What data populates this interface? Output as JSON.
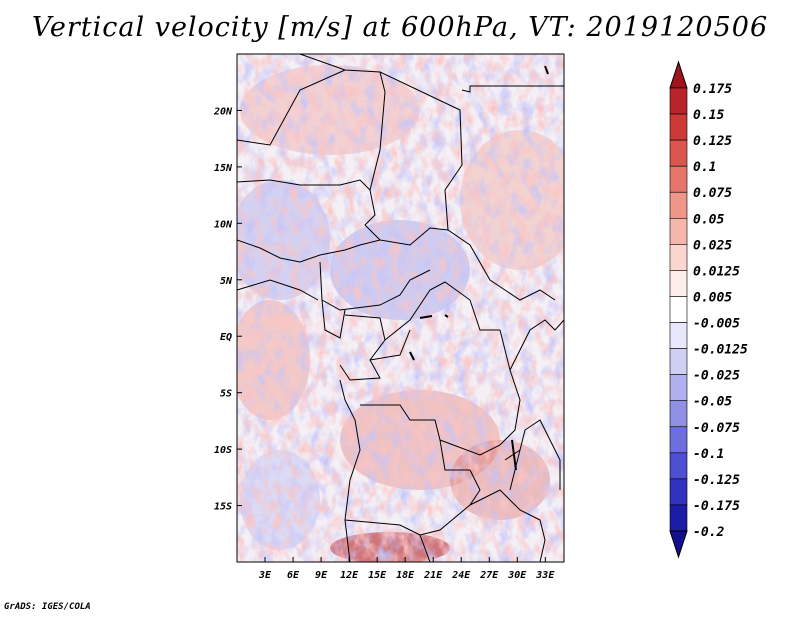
{
  "title": "Vertical velocity [m/s] at 600hPa, VT: 2019120506",
  "credit": "GrADS: IGES/COLA",
  "chart_data": {
    "type": "heatmap",
    "title": "Vertical velocity [m/s] at 600hPa, VT: 2019120506",
    "variable": "Vertical velocity",
    "units": "m/s",
    "level": "600hPa",
    "valid_time": "2019120506",
    "x_axis": {
      "range": [
        0,
        35
      ],
      "ticks": [
        3,
        6,
        9,
        12,
        15,
        18,
        21,
        24,
        27,
        30,
        33
      ],
      "tick_labels": [
        "3E",
        "6E",
        "9E",
        "12E",
        "15E",
        "18E",
        "21E",
        "24E",
        "27E",
        "30E",
        "33E"
      ]
    },
    "y_axis": {
      "range": [
        -20,
        25
      ],
      "ticks": [
        20,
        15,
        10,
        5,
        0,
        -5,
        -10,
        -15
      ],
      "tick_labels": [
        "20N",
        "15N",
        "10N",
        "5N",
        "EQ",
        "5S",
        "10S",
        "15S"
      ]
    },
    "colorbar": {
      "labels": [
        "0.175",
        "0.15",
        "0.125",
        "0.1",
        "0.075",
        "0.05",
        "0.025",
        "0.0125",
        "0.005",
        "-0.005",
        "-0.0125",
        "-0.025",
        "-0.05",
        "-0.075",
        "-0.1",
        "-0.125",
        "-0.175",
        "-0.2"
      ],
      "colors": [
        "#a0141c",
        "#b8242a",
        "#cc3a38",
        "#dc5650",
        "#e6766c",
        "#ee968a",
        "#f6b6ac",
        "#fbd6ce",
        "#fdeeea",
        "#ffffff",
        "#e8e8fa",
        "#cfcff4",
        "#b0b0ee",
        "#9090e6",
        "#6e6ede",
        "#4e4ed0",
        "#3232c0",
        "#1c1ca6",
        "#101090"
      ]
    }
  }
}
